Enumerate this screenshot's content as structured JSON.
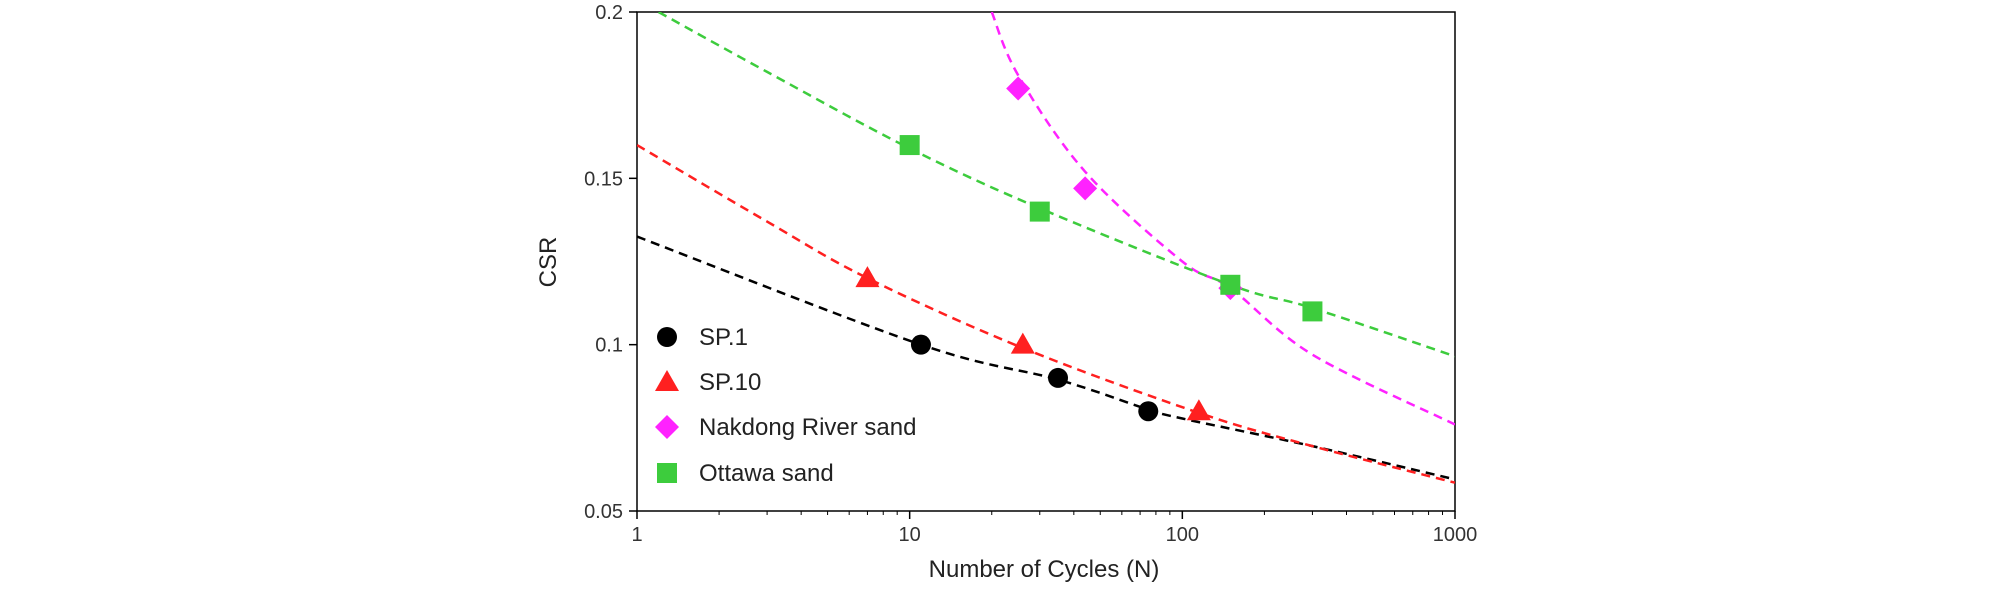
{
  "chart_data": {
    "type": "scatter",
    "xlabel": "Number of Cycles (N)",
    "ylabel": "CSR",
    "xscale": "log",
    "xlim": [
      1,
      1000
    ],
    "ylim": [
      0.05,
      0.2
    ],
    "x_ticks": [
      "1",
      "10",
      "100",
      "1000"
    ],
    "y_ticks": [
      "0.05",
      "0.1",
      "0.15",
      "0.2"
    ],
    "grid": false,
    "legend_position": "left-inside",
    "series": [
      {
        "name": "SP.1",
        "marker": "circle",
        "color": "#000000",
        "points": [
          [
            11,
            0.1
          ],
          [
            35,
            0.09
          ],
          [
            75,
            0.08
          ]
        ],
        "fit": [
          [
            1,
            0.1325
          ],
          [
            11,
            0.1
          ],
          [
            35,
            0.0895
          ],
          [
            75,
            0.0805
          ],
          [
            100,
            0.0778
          ],
          [
            300,
            0.0695
          ],
          [
            1000,
            0.0595
          ]
        ]
      },
      {
        "name": "SP.10",
        "marker": "triangle",
        "color": "#ff2020",
        "points": [
          [
            7,
            0.12
          ],
          [
            26,
            0.1
          ],
          [
            115,
            0.08
          ]
        ],
        "fit": [
          [
            1,
            0.16
          ],
          [
            3,
            0.137
          ],
          [
            7,
            0.12
          ],
          [
            26,
            0.099
          ],
          [
            115,
            0.0795
          ],
          [
            300,
            0.0695
          ],
          [
            1000,
            0.0585
          ]
        ]
      },
      {
        "name": "Nakdong River sand",
        "marker": "diamond",
        "color": "#ff22ff",
        "points": [
          [
            25,
            0.177
          ],
          [
            44,
            0.147
          ],
          [
            150,
            0.117
          ]
        ],
        "fit": [
          [
            20,
            0.2
          ],
          [
            25,
            0.181
          ],
          [
            44,
            0.152
          ],
          [
            100,
            0.125
          ],
          [
            150,
            0.117
          ],
          [
            300,
            0.097
          ],
          [
            1000,
            0.076
          ]
        ]
      },
      {
        "name": "Ottawa sand",
        "marker": "square",
        "color": "#3dcc3d",
        "points": [
          [
            10,
            0.16
          ],
          [
            30,
            0.14
          ],
          [
            150,
            0.118
          ],
          [
            300,
            0.11
          ]
        ],
        "fit": [
          [
            1.2,
            0.2
          ],
          [
            3,
            0.182
          ],
          [
            10,
            0.159
          ],
          [
            30,
            0.141
          ],
          [
            150,
            0.118
          ],
          [
            300,
            0.111
          ],
          [
            1000,
            0.0965
          ]
        ]
      }
    ]
  }
}
